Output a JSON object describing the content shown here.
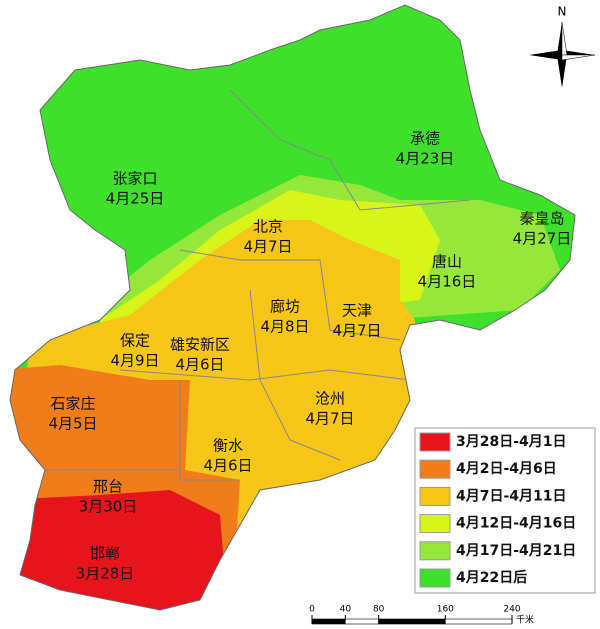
{
  "north": "N",
  "cities": [
    {
      "name": "承德",
      "date": "4月23日"
    },
    {
      "name": "张家口",
      "date": "4月25日"
    },
    {
      "name": "秦皇岛",
      "date": "4月27日"
    },
    {
      "name": "北京",
      "date": "4月7日"
    },
    {
      "name": "唐山",
      "date": "4月16日"
    },
    {
      "name": "廊坊",
      "date": "4月8日"
    },
    {
      "name": "天津",
      "date": "4月7日"
    },
    {
      "name": "保定",
      "date": "4月9日"
    },
    {
      "name": "雄安新区",
      "date": "4月6日"
    },
    {
      "name": "石家庄",
      "date": "4月5日"
    },
    {
      "name": "沧州",
      "date": "4月7日"
    },
    {
      "name": "衡水",
      "date": "4月6日"
    },
    {
      "name": "邢台",
      "date": "3月30日"
    },
    {
      "name": "邯郸",
      "date": "3月28日"
    }
  ],
  "legend": [
    {
      "label": "3月28日-4月1日",
      "color": "#e8141b"
    },
    {
      "label": "4月2日-4月6日",
      "color": "#f07d1a"
    },
    {
      "label": "4月7日-4月11日",
      "color": "#f5c518"
    },
    {
      "label": "4月12日-4月16日",
      "color": "#d8f51a"
    },
    {
      "label": "4月17日-4月21日",
      "color": "#95e83a"
    },
    {
      "label": "4月22日后",
      "color": "#3fe02c"
    }
  ],
  "scale": {
    "ticks": [
      0,
      40,
      80,
      160,
      240
    ],
    "unit": "千米"
  }
}
